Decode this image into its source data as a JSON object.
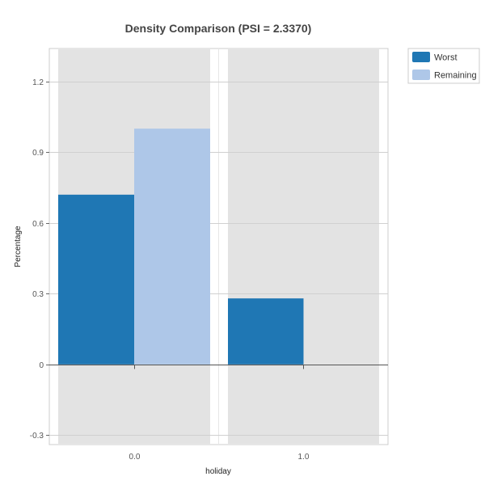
{
  "chart_data": {
    "type": "bar",
    "title": "Density Comparison (PSI = 2.3370)",
    "xlabel": "holiday",
    "ylabel": "Percentage",
    "categories": [
      "0.0",
      "1.0"
    ],
    "series": [
      {
        "name": "Worst",
        "values": [
          0.72,
          0.28
        ],
        "color": "#1f77b4"
      },
      {
        "name": "Remaining",
        "values": [
          1.0,
          0.0
        ],
        "color": "#aec7e8"
      }
    ],
    "ylim": [
      -0.34,
      1.34
    ],
    "yticks": [
      -0.3,
      0,
      0.3,
      0.6,
      0.9,
      1.2
    ],
    "ytick_labels": [
      "-0.3",
      "0",
      "0.3",
      "0.6",
      "0.9",
      "1.2"
    ],
    "grid": true,
    "legend": "top-right",
    "colors": {
      "panel_background": "#e3e3e3",
      "plot_background": "#ffffff",
      "gridline": "#d0d0d0",
      "zero_line": "#555555"
    }
  }
}
